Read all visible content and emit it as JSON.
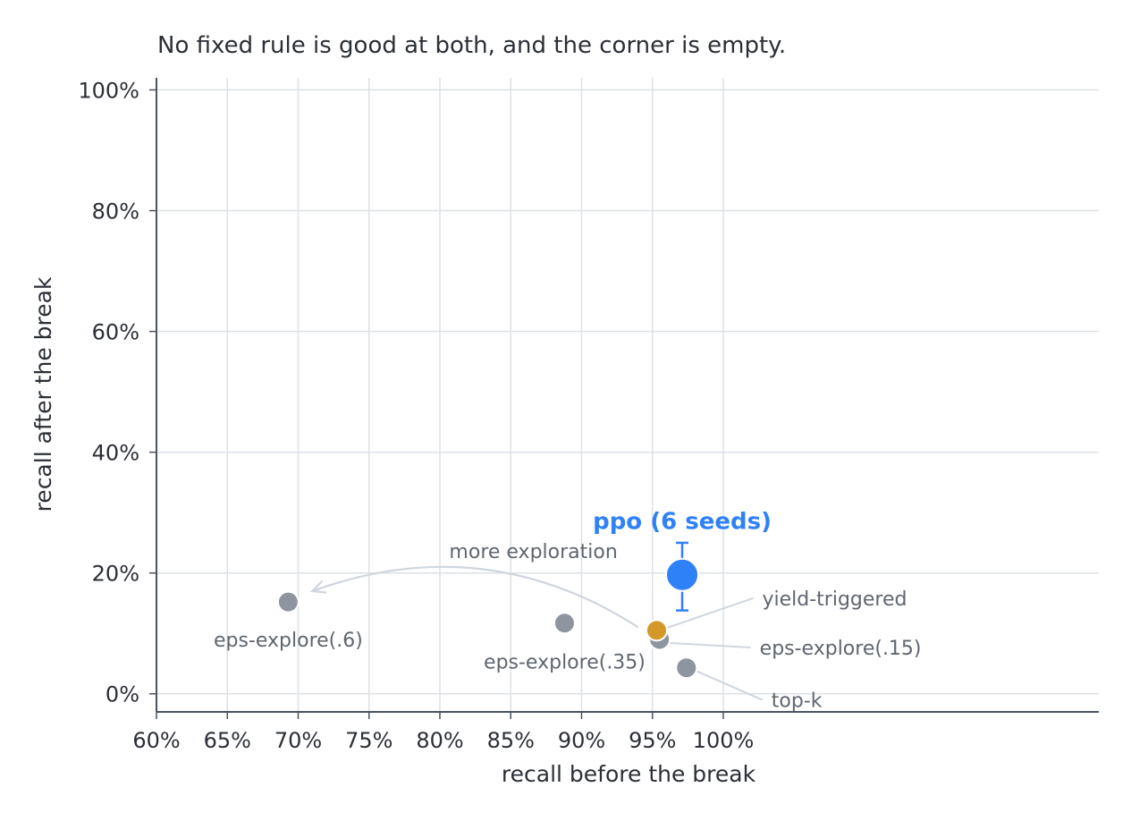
{
  "chart_data": {
    "type": "scatter",
    "title": "No fixed rule is good at both, and the corner is empty.",
    "xlabel": "recall before the break",
    "ylabel": "recall after the break",
    "xlim": [
      0.6,
      1.265
    ],
    "ylim": [
      -0.03,
      1.02
    ],
    "x_ticks": [
      0.6,
      0.65,
      0.7,
      0.75,
      0.8,
      0.85,
      0.9,
      0.95,
      1.0
    ],
    "x_tick_labels": [
      "60%",
      "65%",
      "70%",
      "75%",
      "80%",
      "85%",
      "90%",
      "95%",
      "100%"
    ],
    "y_ticks": [
      0.0,
      0.2,
      0.4,
      0.6,
      0.8,
      1.0
    ],
    "y_tick_labels": [
      "0%",
      "20%",
      "40%",
      "60%",
      "80%",
      "100%"
    ],
    "grid": true,
    "points": [
      {
        "label": "eps-explore(.6)",
        "x": 0.693,
        "y": 0.152,
        "color": "#8f959e"
      },
      {
        "label": "eps-explore(.35)",
        "x": 0.888,
        "y": 0.117,
        "color": "#8f959e"
      },
      {
        "label": "eps-explore(.15)",
        "x": 0.955,
        "y": 0.09,
        "color": "#8f959e"
      },
      {
        "label": "top-k",
        "x": 0.974,
        "y": 0.043,
        "color": "#8f959e"
      },
      {
        "label": "yield-triggered",
        "x": 0.953,
        "y": 0.105,
        "color": "#d4972a"
      }
    ],
    "highlight": {
      "label": "ppo (6 seeds)",
      "x": 0.971,
      "y": 0.197,
      "y_err_low": 0.138,
      "y_err_high": 0.25,
      "color": "#2f81f7"
    },
    "annotation": {
      "text": "more exploration",
      "from": [
        0.94,
        0.11
      ],
      "to": [
        0.71,
        0.17
      ]
    }
  }
}
